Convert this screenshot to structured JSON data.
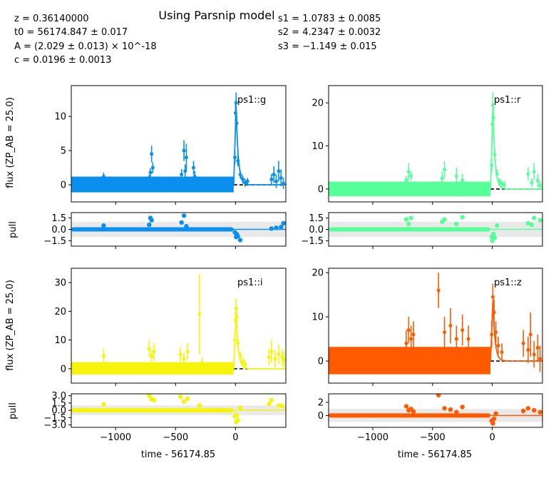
{
  "figure": {
    "title": "Using Parsnip model",
    "params_left": [
      "z = 0.36140000",
      "t0 = 56174.847 ± 0.017",
      "A = (2.029 ± 0.013) × 10^-18",
      "c = 0.0196 ± 0.0013"
    ],
    "params_right": [
      "s1 = 1.0783 ± 0.0085",
      "s2 = 4.2347 ± 0.0032",
      "s3 = −1.149 ± 0.015"
    ],
    "flux_ylabel": "flux (ZP_AB = 25.0)",
    "pull_ylabel": "pull",
    "xlabel": "time - 56174.85"
  },
  "colors": {
    "g": "#0a8fef",
    "r": "#57ff98",
    "i": "#f5f40a",
    "z": "#ff5a00",
    "model_ref": "#000000",
    "band": "#e9e9e9"
  },
  "chart_data": [
    {
      "type": "scatter",
      "band": "ps1::g",
      "color_key": "g",
      "xlim": [
        -1370,
        420
      ],
      "ylim": [
        -2.5,
        14.5
      ],
      "xticks": [
        -1000,
        -500,
        0
      ],
      "yticks": [
        0,
        5,
        10
      ],
      "pull_ylim": [
        -2.2,
        2.2
      ],
      "pull_yticks": [
        -1.5,
        0.0,
        1.5
      ],
      "bulk": {
        "x_range": [
          -1370,
          -15
        ],
        "y_range": [
          -1.1,
          1.2
        ]
      },
      "points": [
        [
          -1100,
          1.2,
          0.6
        ],
        [
          -720,
          1.0,
          0.5
        ],
        [
          -710,
          1.8,
          0.6
        ],
        [
          -700,
          4.5,
          1.2
        ],
        [
          -690,
          2.5,
          0.8
        ],
        [
          -450,
          1.5,
          0.8
        ],
        [
          -430,
          5.0,
          1.5
        ],
        [
          -420,
          2.0,
          1.0
        ],
        [
          -410,
          4.0,
          2.0
        ],
        [
          -350,
          2.5,
          1.0
        ],
        [
          -340,
          1.2,
          0.8
        ],
        [
          -5,
          4.0,
          1.0
        ],
        [
          0,
          10.5,
          1.5
        ],
        [
          5,
          12.0,
          1.5
        ],
        [
          10,
          9.0,
          1.2
        ],
        [
          20,
          3.5,
          0.8
        ],
        [
          40,
          1.5,
          0.6
        ],
        [
          60,
          0.8,
          0.6
        ],
        [
          80,
          0.3,
          0.6
        ],
        [
          100,
          0.5,
          0.5
        ],
        [
          300,
          0.8,
          0.8
        ],
        [
          320,
          1.5,
          1.2
        ],
        [
          340,
          0.5,
          1.0
        ],
        [
          360,
          2.0,
          1.5
        ],
        [
          380,
          1.0,
          1.2
        ],
        [
          400,
          0.2,
          0.8
        ]
      ],
      "pulls": [
        [
          -1100,
          0.5
        ],
        [
          -720,
          0.6
        ],
        [
          -710,
          1.5
        ],
        [
          -700,
          1.2
        ],
        [
          -450,
          0.9
        ],
        [
          -430,
          1.8
        ],
        [
          -410,
          0.4
        ],
        [
          -5,
          -0.4
        ],
        [
          5,
          -1.0
        ],
        [
          10,
          -0.6
        ],
        [
          20,
          -0.9
        ],
        [
          40,
          -1.4
        ],
        [
          300,
          0.1
        ],
        [
          340,
          0.2
        ],
        [
          380,
          0.3
        ],
        [
          400,
          0.8
        ]
      ],
      "label": "ps1::g"
    },
    {
      "type": "scatter",
      "band": "ps1::r",
      "color_key": "r",
      "xlim": [
        -1370,
        420
      ],
      "ylim": [
        -3,
        24
      ],
      "xticks": [
        -1000,
        -500,
        0
      ],
      "yticks": [
        0,
        10,
        20
      ],
      "pull_ylim": [
        -2.2,
        2.2
      ],
      "pull_yticks": [
        -1.5,
        0.0,
        1.5
      ],
      "bulk": {
        "x_range": [
          -1370,
          -15
        ],
        "y_range": [
          -1.7,
          1.7
        ]
      },
      "points": [
        [
          -720,
          2.0,
          1.0
        ],
        [
          -700,
          4.0,
          2.0
        ],
        [
          -680,
          3.0,
          1.0
        ],
        [
          -420,
          2.5,
          1.5
        ],
        [
          -400,
          4.5,
          2.0
        ],
        [
          -300,
          3.0,
          2.0
        ],
        [
          -250,
          2.0,
          1.5
        ],
        [
          -5,
          5.5,
          1.5
        ],
        [
          0,
          15.0,
          2.5
        ],
        [
          5,
          19.5,
          3.0
        ],
        [
          10,
          16.5,
          2.5
        ],
        [
          20,
          8.0,
          1.5
        ],
        [
          40,
          3.5,
          1.0
        ],
        [
          60,
          1.8,
          0.8
        ],
        [
          80,
          1.2,
          0.8
        ],
        [
          100,
          1.0,
          0.8
        ],
        [
          300,
          3.5,
          1.5
        ],
        [
          330,
          1.5,
          1.0
        ],
        [
          350,
          4.0,
          2.0
        ],
        [
          380,
          2.0,
          1.5
        ],
        [
          400,
          0.8,
          1.0
        ]
      ],
      "pulls": [
        [
          -720,
          1.3
        ],
        [
          -700,
          0.7
        ],
        [
          -680,
          1.5
        ],
        [
          -420,
          1.0
        ],
        [
          -400,
          1.3
        ],
        [
          -300,
          0.7
        ],
        [
          -250,
          1.6
        ],
        [
          -5,
          -1.0
        ],
        [
          0,
          -1.5
        ],
        [
          10,
          -0.6
        ],
        [
          20,
          -1.1
        ],
        [
          40,
          0.5
        ],
        [
          300,
          0.8
        ],
        [
          330,
          0.6
        ],
        [
          350,
          1.5
        ],
        [
          400,
          1.2
        ]
      ],
      "label": "ps1::r"
    },
    {
      "type": "scatter",
      "band": "ps1::i",
      "color_key": "i",
      "xlim": [
        -1370,
        420
      ],
      "ylim": [
        -5,
        35
      ],
      "xticks": [
        -1000,
        -500,
        0
      ],
      "yticks": [
        0,
        10,
        20,
        30
      ],
      "pull_ylim": [
        -3.5,
        3.4
      ],
      "pull_yticks": [
        -3.0,
        -1.5,
        0.0,
        1.5,
        3.0
      ],
      "bulk": {
        "x_range": [
          -1370,
          -15
        ],
        "y_range": [
          -2.0,
          2.3
        ]
      },
      "points": [
        [
          -1100,
          4.5,
          2.5
        ],
        [
          -720,
          7.0,
          3.0
        ],
        [
          -700,
          4.5,
          2.0
        ],
        [
          -680,
          6.0,
          3.0
        ],
        [
          -460,
          5.0,
          2.5
        ],
        [
          -430,
          3.5,
          2.0
        ],
        [
          -400,
          6.0,
          3.0
        ],
        [
          -300,
          19.0,
          14.0
        ],
        [
          -280,
          2.0,
          2.0
        ],
        [
          -5,
          10.0,
          2.5
        ],
        [
          0,
          17.0,
          3.0
        ],
        [
          5,
          21.0,
          3.5
        ],
        [
          10,
          18.0,
          3.0
        ],
        [
          20,
          9.0,
          2.0
        ],
        [
          40,
          4.5,
          1.5
        ],
        [
          60,
          2.5,
          1.5
        ],
        [
          80,
          1.5,
          1.5
        ],
        [
          280,
          4.0,
          3.0
        ],
        [
          300,
          6.0,
          4.0
        ],
        [
          330,
          3.5,
          3.0
        ],
        [
          360,
          5.0,
          3.5
        ],
        [
          390,
          4.0,
          3.0
        ],
        [
          405,
          3.0,
          3.0
        ]
      ],
      "pulls": [
        [
          -1100,
          1.2
        ],
        [
          -720,
          3.0
        ],
        [
          -700,
          2.3
        ],
        [
          -680,
          2.1
        ],
        [
          -460,
          2.8
        ],
        [
          -430,
          1.8
        ],
        [
          -400,
          2.4
        ],
        [
          -300,
          1.0
        ],
        [
          -5,
          -1.2
        ],
        [
          5,
          -2.4
        ],
        [
          10,
          -1.0
        ],
        [
          20,
          -2.0
        ],
        [
          40,
          0.5
        ],
        [
          280,
          1.3
        ],
        [
          300,
          2.1
        ],
        [
          360,
          1.0
        ],
        [
          390,
          0.9
        ]
      ],
      "label": "ps1::i"
    },
    {
      "type": "scatter",
      "band": "ps1::z",
      "color_key": "z",
      "xlim": [
        -1370,
        420
      ],
      "ylim": [
        -5,
        21
      ],
      "xticks": [
        -1000,
        -500,
        0
      ],
      "yticks": [
        0,
        10,
        20
      ],
      "pull_ylim": [
        -1.8,
        3.3
      ],
      "pull_yticks": [
        0,
        2
      ],
      "bulk": {
        "x_range": [
          -1370,
          -15
        ],
        "y_range": [
          -3.0,
          3.2
        ]
      },
      "points": [
        [
          -720,
          4.0,
          3.0
        ],
        [
          -700,
          7.0,
          3.0
        ],
        [
          -680,
          5.0,
          3.0
        ],
        [
          -660,
          6.0,
          3.0
        ],
        [
          -450,
          16.0,
          4.0
        ],
        [
          -400,
          6.5,
          3.5
        ],
        [
          -350,
          8.0,
          4.0
        ],
        [
          -300,
          5.0,
          3.0
        ],
        [
          -250,
          7.0,
          3.5
        ],
        [
          -200,
          5.0,
          3.0
        ],
        [
          -5,
          6.0,
          3.0
        ],
        [
          5,
          14.5,
          3.0
        ],
        [
          15,
          11.0,
          3.0
        ],
        [
          30,
          6.5,
          2.5
        ],
        [
          50,
          3.5,
          2.0
        ],
        [
          80,
          2.0,
          2.0
        ],
        [
          260,
          4.0,
          3.0
        ],
        [
          300,
          2.5,
          3.0
        ],
        [
          320,
          6.0,
          5.0
        ],
        [
          350,
          1.5,
          3.0
        ],
        [
          380,
          3.0,
          3.0
        ],
        [
          400,
          0.5,
          3.0
        ]
      ],
      "pulls": [
        [
          -720,
          1.4
        ],
        [
          -700,
          0.8
        ],
        [
          -680,
          1.0
        ],
        [
          -660,
          0.6
        ],
        [
          -450,
          3.1
        ],
        [
          -400,
          1.1
        ],
        [
          -350,
          0.9
        ],
        [
          -300,
          0.5
        ],
        [
          -250,
          1.3
        ],
        [
          -5,
          -0.8
        ],
        [
          5,
          -1.2
        ],
        [
          15,
          -0.5
        ],
        [
          30,
          0.3
        ],
        [
          260,
          0.7
        ],
        [
          300,
          1.1
        ],
        [
          350,
          0.8
        ],
        [
          400,
          0.5
        ]
      ],
      "label": "ps1::z"
    }
  ]
}
